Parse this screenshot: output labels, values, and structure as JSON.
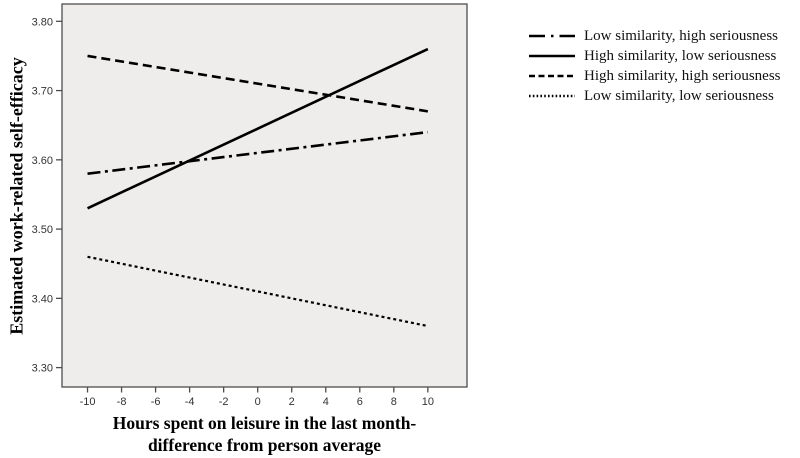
{
  "chart_data": {
    "type": "line",
    "title": "",
    "ylabel": "Estimated work-related self-efficacy",
    "xlabel_line1": "Hours spent on leisure in the last month-",
    "xlabel_line2": "difference from person average",
    "xlim": [
      -11.5,
      12.3
    ],
    "ylim": [
      3.272,
      3.825
    ],
    "xticks": [
      -10,
      -8,
      -6,
      -4,
      -2,
      0,
      2,
      4,
      6,
      8,
      10
    ],
    "yticks": [
      3.3,
      3.4,
      3.5,
      3.6,
      3.7,
      3.8
    ],
    "x": [
      -10,
      10
    ],
    "series": [
      {
        "name": "Low similarity, high seriousness",
        "style": "dashdot",
        "values": [
          3.58,
          3.64
        ]
      },
      {
        "name": "High similarity, low seriousness",
        "style": "solid",
        "values": [
          3.53,
          3.76
        ]
      },
      {
        "name": "High similarity, high seriousness",
        "style": "dashed",
        "values": [
          3.75,
          3.67
        ]
      },
      {
        "name": "Low similarity, low seriousness",
        "style": "dotted",
        "values": [
          3.46,
          3.36
        ]
      }
    ],
    "legend_position": "top-right",
    "grid": false,
    "colors": {
      "line": "#000000",
      "plot_bg": "#eeedeb",
      "frame": "#4d4d4d",
      "tick_text": "#333333",
      "title_text": "#000000"
    }
  }
}
